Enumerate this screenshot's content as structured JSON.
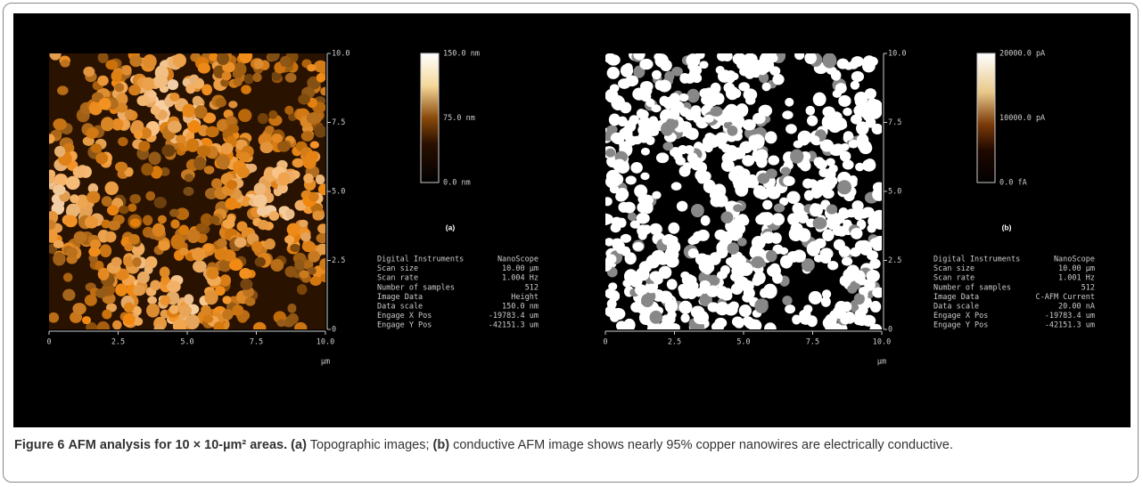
{
  "figure": {
    "panels": [
      {
        "style": "height",
        "y_axis_labels": [
          "10.0",
          "7.5",
          "5.0",
          "2.5",
          "0"
        ],
        "x_axis_labels": [
          "0",
          "2.5",
          "5.0",
          "7.5",
          "10.0"
        ],
        "x_unit": "µm",
        "colorbar_labels": [
          "150.0 nm",
          "75.0 nm",
          "0.0 nm"
        ],
        "panel_label": "(a)",
        "info": [
          [
            "Digital Instruments",
            "NanoScope"
          ],
          [
            "Scan size",
            "10.00 µm"
          ],
          [
            "Scan rate",
            "1.004 Hz"
          ],
          [
            "Number of samples",
            "512"
          ],
          [
            "Image Data",
            "Height"
          ],
          [
            "Data scale",
            "150.0 nm"
          ],
          [
            "Engage X Pos",
            "-19783.4 um"
          ],
          [
            "Engage Y Pos",
            "-42151.3 um"
          ]
        ]
      },
      {
        "style": "current",
        "y_axis_labels": [
          "10.0",
          "7.5",
          "5.0",
          "2.5",
          "0"
        ],
        "x_axis_labels": [
          "0",
          "2.5",
          "5.0",
          "7.5",
          "10.0"
        ],
        "x_unit": "µm",
        "colorbar_labels": [
          "20000.0 pA",
          "10000.0 pA",
          "0.0 fA"
        ],
        "panel_label": "(b)",
        "info": [
          [
            "Digital Instruments",
            "NanoScope"
          ],
          [
            "Scan size",
            "10.00 µm"
          ],
          [
            "Scan rate",
            "1.001 Hz"
          ],
          [
            "Number of samples",
            "512"
          ],
          [
            "Image Data",
            "C-AFM Current"
          ],
          [
            "Data scale",
            "20.00 nA"
          ],
          [
            "Engage X Pos",
            "-19783.4 um"
          ],
          [
            "Engage Y Pos",
            "-42151.3 um"
          ]
        ]
      }
    ],
    "caption": {
      "label": "Figure 6",
      "title": "AFM analysis for 10 × 10-µm² areas.",
      "parts": [
        {
          "text": "(a)",
          "bold": true
        },
        {
          "text": "Topographic images;"
        },
        {
          "text": "(b)",
          "bold": true
        },
        {
          "text": "conductive AFM image shows nearly 95% copper nanowires are electrically conductive."
        }
      ]
    }
  }
}
